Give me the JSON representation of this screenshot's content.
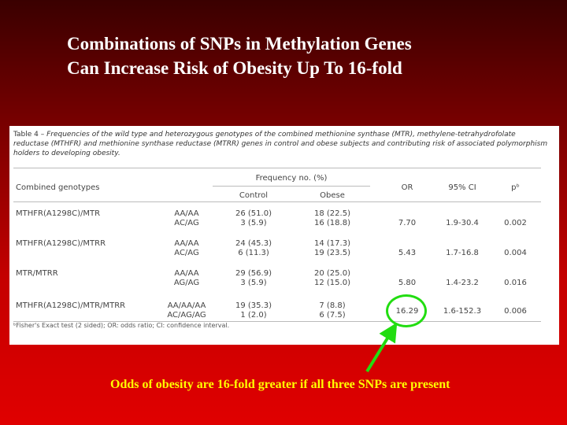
{
  "slide": {
    "title_line1": "Combinations of SNPs in Methylation Genes",
    "title_line2": "Can Increase Risk of Obesity Up To 16-fold"
  },
  "table": {
    "caption_lead": "Table 4 – ",
    "caption_text": "Frequencies of the wild type and heterozygous genotypes of the combined methionine synthase (MTR), methylene-tetrahydrofolate reductase (MTHFR) and methionine synthase reductase (MTRR) genes in control and obese subjects and contributing risk of associated polymorphism holders to developing obesity.",
    "headers": {
      "combined": "Combined genotypes",
      "frequency": "Frequency no. (%)",
      "control": "Control",
      "obese": "Obese",
      "or": "OR",
      "ci": "95% CI",
      "p": "pᵇ"
    },
    "rows": [
      {
        "name": "MTHFR(A1298C)/MTR",
        "geno1": "AA/AA",
        "geno2": "AC/AG",
        "control1": "26 (51.0)",
        "control2": "3 (5.9)",
        "obese1": "18 (22.5)",
        "obese2": "16 (18.8)",
        "or": "7.70",
        "ci": "1.9-30.4",
        "p": "0.002"
      },
      {
        "name": "MTHFR(A1298C)/MTRR",
        "geno1": "AA/AA",
        "geno2": "AC/AG",
        "control1": "24 (45.3)",
        "control2": "6 (11.3)",
        "obese1": "14 (17.3)",
        "obese2": "19 (23.5)",
        "or": "5.43",
        "ci": "1.7-16.8",
        "p": "0.004"
      },
      {
        "name": "MTR/MTRR",
        "geno1": "AA/AA",
        "geno2": "AG/AG",
        "control1": "29 (56.9)",
        "control2": "3 (5.9)",
        "obese1": "20 (25.0)",
        "obese2": "12 (15.0)",
        "or": "5.80",
        "ci": "1.4-23.2",
        "p": "0.016"
      },
      {
        "name": "MTHFR(A1298C)/MTR/MTRR",
        "geno1": "AA/AA/AA",
        "geno2": "AC/AG/AG",
        "control1": "19 (35.3)",
        "control2": "1 (2.0)",
        "obese1": "7 (8.8)",
        "obese2": "6 (7.5)",
        "or": "16.29",
        "ci": "1.6-152.3",
        "p": "0.006"
      }
    ],
    "footnote": "ᵇFisher's Exact test (2 sided); OR: odds ratio; CI: confidence interval."
  },
  "annotation": {
    "note": "Odds of obesity are 16-fold greater if all three SNPs are present",
    "highlight_color": "#22dd11",
    "note_color": "#ffff00"
  }
}
